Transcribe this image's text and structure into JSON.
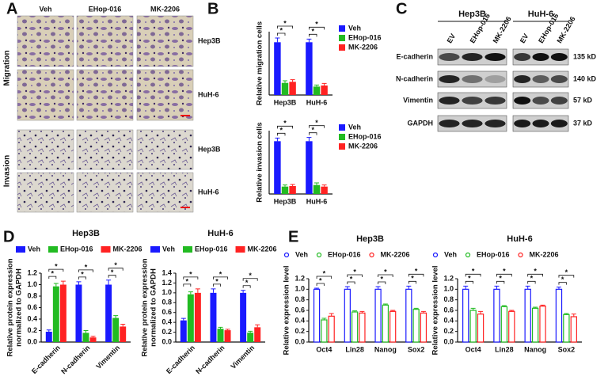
{
  "panel_labels": [
    "A",
    "B",
    "C",
    "D",
    "E"
  ],
  "panel_a": {
    "columns": [
      "Veh",
      "EHop-016",
      "MK-2206"
    ],
    "rows": [
      "Hep3B",
      "HuH-6",
      "Hep3B",
      "HuH-6"
    ],
    "groups": [
      "Migration",
      "Invasion"
    ]
  },
  "panel_c": {
    "cell_lines": [
      "Hep3B",
      "HuH-6"
    ],
    "lanes": [
      "EV",
      "EHop-016",
      "MK-2206"
    ],
    "proteins": [
      "E-cadherin",
      "N-cadherin",
      "Vimentin",
      "GAPDH"
    ],
    "sizes": [
      "135 kD",
      "140 kD",
      "57 kD",
      "37 kD"
    ]
  },
  "chart_data": [
    {
      "type": "bar",
      "ylabel": "Relative migration cells",
      "categories": [
        "Hep3B",
        "HuH-6"
      ],
      "ylim": [
        0,
        1.2
      ],
      "legend": "right",
      "significance": "*",
      "series": [
        {
          "name": "Veh",
          "color": "#1a1aff",
          "values": [
            1.0,
            1.0
          ],
          "errors": [
            0.08,
            0.06
          ]
        },
        {
          "name": "EHop-016",
          "color": "#22bb22",
          "values": [
            0.23,
            0.16
          ],
          "errors": [
            0.04,
            0.03
          ]
        },
        {
          "name": "MK-2206",
          "color": "#ff2222",
          "values": [
            0.25,
            0.18
          ],
          "errors": [
            0.04,
            0.04
          ]
        }
      ]
    },
    {
      "type": "bar",
      "ylabel": "Relative invasion cells",
      "categories": [
        "Hep3B",
        "HuH-6"
      ],
      "ylim": [
        0,
        1.2
      ],
      "legend": "right",
      "significance": "*",
      "series": [
        {
          "name": "Veh",
          "color": "#1a1aff",
          "values": [
            1.0,
            1.0
          ],
          "errors": [
            0.06,
            0.07
          ]
        },
        {
          "name": "EHop-016",
          "color": "#22bb22",
          "values": [
            0.14,
            0.17
          ],
          "errors": [
            0.03,
            0.04
          ]
        },
        {
          "name": "MK-2206",
          "color": "#ff2222",
          "values": [
            0.15,
            0.14
          ],
          "errors": [
            0.03,
            0.03
          ]
        }
      ]
    },
    {
      "type": "bar",
      "title": "Hep3B",
      "ylabel": [
        "Relative protein expression",
        "normalized to GAPDH"
      ],
      "categories": [
        "E-cadherin",
        "N-cadherin",
        "Vimentin"
      ],
      "rotated_labels": true,
      "ylim": [
        0,
        1.2
      ],
      "yticks": [
        {
          "value": 0,
          "label": "0.0"
        },
        0.2,
        0.4,
        0.6,
        0.8,
        {
          "value": 1,
          "label": "1.0"
        },
        1.2
      ],
      "legend": "top",
      "significance": "*",
      "series": [
        {
          "name": "Veh",
          "color": "#1a1aff",
          "values": [
            0.18,
            1.0,
            1.0
          ],
          "errors": [
            0.03,
            0.05,
            0.08
          ]
        },
        {
          "name": "EHop-016",
          "color": "#22bb22",
          "values": [
            0.97,
            0.16,
            0.42
          ],
          "errors": [
            0.05,
            0.04,
            0.04
          ]
        },
        {
          "name": "MK-2206",
          "color": "#ff2222",
          "values": [
            1.0,
            0.08,
            0.27
          ],
          "errors": [
            0.06,
            0.02,
            0.04
          ]
        }
      ]
    },
    {
      "type": "bar",
      "title": "HuH-6",
      "ylabel": [
        "Relative protein expression",
        "normalized to GAPDH"
      ],
      "categories": [
        "E-cadherin",
        "N-cadherin",
        "Vimentin"
      ],
      "rotated_labels": true,
      "ylim": [
        0,
        1.4
      ],
      "yticks": [
        {
          "value": 0,
          "label": "0.0"
        },
        0.2,
        0.4,
        0.6,
        0.8,
        {
          "value": 1,
          "label": "1.0"
        },
        1.2,
        1.4
      ],
      "legend": "top",
      "significance": "*",
      "series": [
        {
          "name": "Veh",
          "color": "#1a1aff",
          "values": [
            0.44,
            1.0,
            1.0
          ],
          "errors": [
            0.04,
            0.08,
            0.05
          ]
        },
        {
          "name": "EHop-016",
          "color": "#22bb22",
          "values": [
            0.97,
            0.27,
            0.19
          ],
          "errors": [
            0.05,
            0.03,
            0.03
          ]
        },
        {
          "name": "MK-2206",
          "color": "#ff2222",
          "values": [
            1.0,
            0.24,
            0.3
          ],
          "errors": [
            0.08,
            0.02,
            0.05
          ]
        }
      ]
    },
    {
      "type": "bar",
      "hollow": true,
      "title": "Hep3B",
      "ylabel": "Relative expression level",
      "categories": [
        "Oct4",
        "Lin28",
        "Nanog",
        "Sox2"
      ],
      "ylim": [
        0,
        1.2
      ],
      "yticks": [
        {
          "value": 0,
          "label": "0.0"
        },
        0.2,
        0.4,
        0.6,
        0.8,
        {
          "value": 1,
          "label": "1.0"
        },
        1.2
      ],
      "legend": "top",
      "significance": "*",
      "series": [
        {
          "name": "Veh",
          "color": "#1a1aff",
          "values": [
            1.0,
            1.0,
            1.0,
            1.0
          ],
          "errors": [
            0.02,
            0.05,
            0.05,
            0.06
          ]
        },
        {
          "name": "EHop-016",
          "color": "#22bb22",
          "values": [
            0.42,
            0.57,
            0.7,
            0.62
          ],
          "errors": [
            0.03,
            0.02,
            0.02,
            0.02
          ]
        },
        {
          "name": "MK-2206",
          "color": "#ff2222",
          "values": [
            0.49,
            0.55,
            0.58,
            0.55
          ],
          "errors": [
            0.05,
            0.03,
            0.02,
            0.03
          ]
        }
      ]
    },
    {
      "type": "bar",
      "hollow": true,
      "title": "HuH-6",
      "ylabel": "Relative expression level",
      "categories": [
        "Oct4",
        "Lin28",
        "Nanog",
        "Sox2"
      ],
      "ylim": [
        0,
        1.2
      ],
      "yticks": [
        {
          "value": 0,
          "label": "0.0"
        },
        0.2,
        0.4,
        0.6,
        0.8,
        {
          "value": 1,
          "label": "1.0"
        },
        1.2
      ],
      "legend": "top",
      "significance": "*",
      "series": [
        {
          "name": "Veh",
          "color": "#1a1aff",
          "values": [
            1.0,
            1.0,
            1.0,
            1.0
          ],
          "errors": [
            0.06,
            0.06,
            0.06,
            0.04
          ]
        },
        {
          "name": "EHop-016",
          "color": "#22bb22",
          "values": [
            0.6,
            0.67,
            0.64,
            0.52
          ],
          "errors": [
            0.04,
            0.02,
            0.02,
            0.02
          ]
        },
        {
          "name": "MK-2206",
          "color": "#ff2222",
          "values": [
            0.53,
            0.58,
            0.68,
            0.48
          ],
          "errors": [
            0.05,
            0.02,
            0.02,
            0.05
          ]
        }
      ]
    }
  ]
}
